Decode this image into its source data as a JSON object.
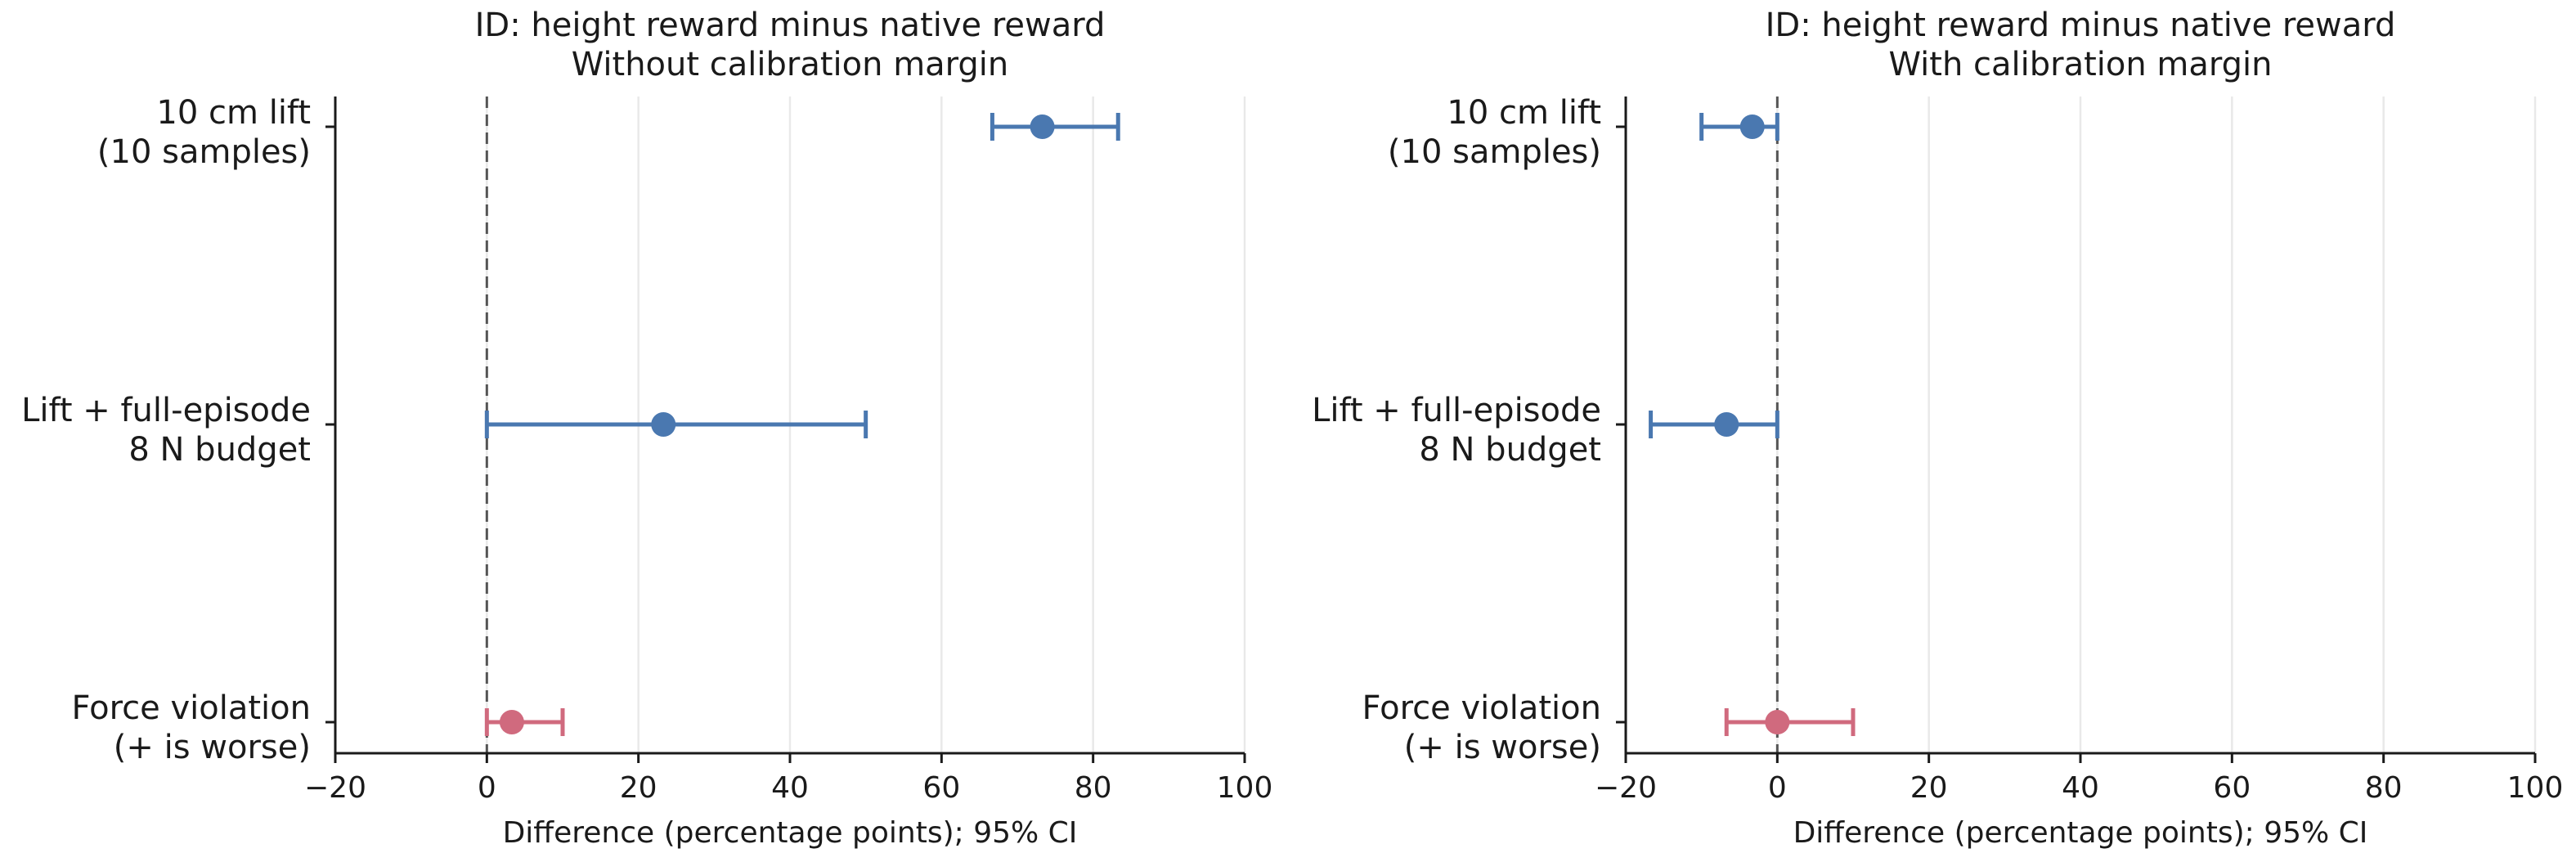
{
  "colors": {
    "positive": "#4a78b0",
    "violation": "#d06a7e",
    "grid": "#e9e9e9",
    "axis": "#1a1a1a",
    "zero_line": "#555555"
  },
  "chart_data": [
    {
      "type": "forest",
      "title_lines": [
        "ID: height reward minus native reward",
        "Without calibration margin"
      ],
      "xlabel": "Difference (percentage points); 95% CI",
      "xlim": [
        -20,
        100
      ],
      "xticks": [
        -20,
        0,
        20,
        40,
        60,
        80,
        100
      ],
      "xtick_labels": [
        "−20",
        "0",
        "20",
        "40",
        "60",
        "80",
        "100"
      ],
      "zero_reference_line": true,
      "vertical_grid": true,
      "rows": [
        {
          "label_lines": [
            "10 cm lift",
            "(10 samples)"
          ],
          "estimate": 73.3,
          "ci": [
            66.7,
            83.3
          ],
          "color": "#4a78b0"
        },
        {
          "label_lines": [
            "Lift + full-episode",
            "8 N budget"
          ],
          "estimate": 23.3,
          "ci": [
            0.0,
            50.0
          ],
          "color": "#4a78b0"
        },
        {
          "label_lines": [
            "Force violation",
            "(+ is worse)"
          ],
          "estimate": 3.3,
          "ci": [
            0.0,
            10.0
          ],
          "color": "#d06a7e"
        }
      ]
    },
    {
      "type": "forest",
      "title_lines": [
        "ID: height reward minus native reward",
        "With calibration margin"
      ],
      "xlabel": "Difference (percentage points); 95% CI",
      "xlim": [
        -20,
        100
      ],
      "xticks": [
        -20,
        0,
        20,
        40,
        60,
        80,
        100
      ],
      "xtick_labels": [
        "−20",
        "0",
        "20",
        "40",
        "60",
        "80",
        "100"
      ],
      "zero_reference_line": true,
      "vertical_grid": true,
      "rows": [
        {
          "label_lines": [
            "10 cm lift",
            "(10 samples)"
          ],
          "estimate": -3.3,
          "ci": [
            -10.0,
            0.0
          ],
          "color": "#4a78b0"
        },
        {
          "label_lines": [
            "Lift + full-episode",
            "8 N budget"
          ],
          "estimate": -6.7,
          "ci": [
            -16.7,
            0.0
          ],
          "color": "#4a78b0"
        },
        {
          "label_lines": [
            "Force violation",
            "(+ is worse)"
          ],
          "estimate": 0.0,
          "ci": [
            -6.7,
            10.0
          ],
          "color": "#d06a7e"
        }
      ]
    }
  ]
}
